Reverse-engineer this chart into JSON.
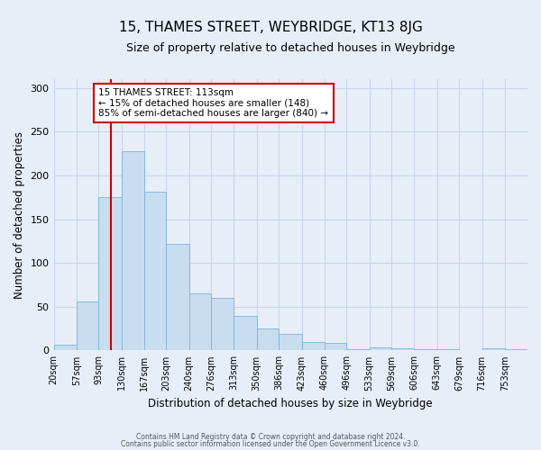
{
  "title": "15, THAMES STREET, WEYBRIDGE, KT13 8JG",
  "subtitle": "Size of property relative to detached houses in Weybridge",
  "xlabel": "Distribution of detached houses by size in Weybridge",
  "ylabel": "Number of detached properties",
  "bar_labels": [
    "20sqm",
    "57sqm",
    "93sqm",
    "130sqm",
    "167sqm",
    "203sqm",
    "240sqm",
    "276sqm",
    "313sqm",
    "350sqm",
    "386sqm",
    "423sqm",
    "460sqm",
    "496sqm",
    "533sqm",
    "569sqm",
    "606sqm",
    "643sqm",
    "679sqm",
    "716sqm",
    "753sqm"
  ],
  "bar_values": [
    7,
    56,
    175,
    228,
    181,
    122,
    65,
    60,
    40,
    25,
    19,
    10,
    9,
    1,
    4,
    3,
    1,
    1,
    0,
    2,
    1
  ],
  "bar_color": "#c9ddf0",
  "bar_edgecolor": "#7ab3d8",
  "vline_x": 113,
  "bin_edges": [
    20,
    57,
    93,
    130,
    167,
    203,
    240,
    276,
    313,
    350,
    386,
    423,
    460,
    496,
    533,
    569,
    606,
    643,
    679,
    716,
    753,
    790
  ],
  "ylim": [
    0,
    310
  ],
  "annotation_text": "15 THAMES STREET: 113sqm\n← 15% of detached houses are smaller (148)\n85% of semi-detached houses are larger (840) →",
  "annotation_box_facecolor": "#ffffff",
  "annotation_box_edgecolor": "#cc0000",
  "vline_color": "#cc0000",
  "footer_line1": "Contains HM Land Registry data © Crown copyright and database right 2024.",
  "footer_line2": "Contains public sector information licensed under the Open Government Licence v3.0.",
  "background_color": "#e8eef8",
  "grid_color": "#c8d4e8",
  "title_fontsize": 11,
  "subtitle_fontsize": 9
}
